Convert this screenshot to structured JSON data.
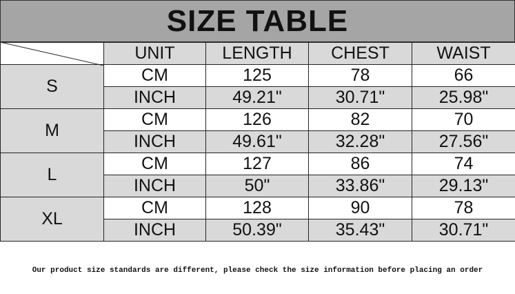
{
  "header": {
    "title": "SIZE TABLE"
  },
  "table": {
    "columns": [
      "UNIT",
      "LENGTH",
      "CHEST",
      "WAIST"
    ],
    "sizes": [
      {
        "size": "S",
        "rows": [
          [
            "CM",
            "125",
            "78",
            "66"
          ],
          [
            "INCH",
            "49.21\"",
            "30.71\"",
            "25.98\""
          ]
        ]
      },
      {
        "size": "M",
        "rows": [
          [
            "CM",
            "126",
            "82",
            "70"
          ],
          [
            "INCH",
            "49.61\"",
            "32.28\"",
            "27.56\""
          ]
        ]
      },
      {
        "size": "L",
        "rows": [
          [
            "CM",
            "127",
            "86",
            "74"
          ],
          [
            "INCH",
            "50\"",
            "33.86\"",
            "29.13\""
          ]
        ]
      },
      {
        "size": "XL",
        "rows": [
          [
            "CM",
            "128",
            "90",
            "78"
          ],
          [
            "INCH",
            "50.39\"",
            "35.43\"",
            "30.71\""
          ]
        ]
      }
    ]
  },
  "footer": {
    "note": "Our product size standards are different, please check the size information before placing an order"
  }
}
